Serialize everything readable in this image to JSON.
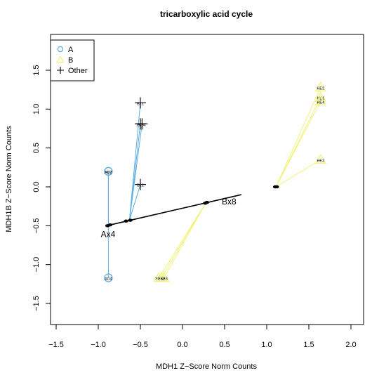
{
  "chart_data": {
    "type": "scatter",
    "title": "tricarboxylic acid cycle",
    "xlabel": "MDH1 Z−Score Norm Counts",
    "ylabel": "MDH1B Z−Score Norm Counts",
    "xlim": [
      -1.5,
      2.0
    ],
    "ylim": [
      -1.5,
      1.5
    ],
    "xticks": [
      -1.5,
      -1.0,
      -0.5,
      0.0,
      0.5,
      1.0,
      1.5,
      2.0
    ],
    "xtick_labels": [
      "−1.5",
      "−1.0",
      "−0.5",
      "0.0",
      "0.5",
      "1.0",
      "1.5",
      "2.0"
    ],
    "yticks": [
      -1.5,
      -1.0,
      -0.5,
      0.0,
      0.5,
      1.0,
      1.5
    ],
    "ytick_labels": [
      "−1.5",
      "−1.0",
      "−0.5",
      "0.0",
      "0.5",
      "1.0",
      "1.5"
    ],
    "grid": false,
    "legend": {
      "position": "top-left",
      "entries": [
        {
          "label": "A",
          "marker": "circle",
          "color": "#5DADE2"
        },
        {
          "label": "B",
          "marker": "triangle",
          "color": "#F4F27A"
        },
        {
          "label": "Other",
          "marker": "plus",
          "color": "#000000"
        }
      ]
    },
    "groups": [
      {
        "marker": "circle",
        "color": "#5DADE2",
        "centroid": {
          "x": -0.88,
          "y": -0.48
        },
        "points": [
          {
            "label": "AD3",
            "x": -0.88,
            "y": 0.2
          },
          {
            "label": "AD2",
            "x": -0.88,
            "y": 0.2
          },
          {
            "label": "AD4",
            "x": -0.88,
            "y": -1.17
          }
        ]
      },
      {
        "marker": "plus",
        "color": "#000000",
        "line_color": "#5DADE2",
        "centroid": {
          "x": -0.63,
          "y": -0.43
        },
        "points": [
          {
            "label": "BL1",
            "x": -0.5,
            "y": 1.08
          },
          {
            "label": "BL4",
            "x": -0.48,
            "y": 0.81
          },
          {
            "label": "BL3",
            "x": -0.5,
            "y": 0.81
          },
          {
            "label": "BL2",
            "x": -0.5,
            "y": 0.03
          }
        ]
      },
      {
        "marker": "triangle",
        "color": "#F4F27A",
        "centroid": {
          "x": 0.28,
          "y": -0.2
        },
        "points": [
          {
            "label": "SE1",
            "x": -0.28,
            "y": -1.17
          },
          {
            "label": "SE2",
            "x": -0.25,
            "y": -1.17
          },
          {
            "label": "SE3",
            "x": -0.22,
            "y": -1.17
          }
        ]
      },
      {
        "marker": "triangle",
        "color": "#F4F27A",
        "centroid": {
          "x": 1.11,
          "y": 0.0
        },
        "points": [
          {
            "label": "HE2",
            "x": 1.64,
            "y": 1.28
          },
          {
            "label": "HE1",
            "x": 1.64,
            "y": 1.15
          },
          {
            "label": "HE4",
            "x": 1.64,
            "y": 1.1
          },
          {
            "label": "HE3",
            "x": 1.64,
            "y": 0.35
          }
        ]
      }
    ],
    "trajectory": {
      "label_start": "Ax4",
      "label_end": "Bx8",
      "start": {
        "x": -0.9,
        "y": -0.5
      },
      "end": {
        "x": 0.7,
        "y": -0.1
      },
      "dots": [
        {
          "x": -0.89,
          "y": -0.5
        },
        {
          "x": -0.86,
          "y": -0.49
        },
        {
          "x": -0.67,
          "y": -0.44
        },
        {
          "x": -0.62,
          "y": -0.43
        },
        {
          "x": 0.27,
          "y": -0.21
        },
        {
          "x": 0.29,
          "y": -0.2
        },
        {
          "x": 1.1,
          "y": 0.0
        },
        {
          "x": 1.12,
          "y": 0.0
        }
      ]
    }
  }
}
